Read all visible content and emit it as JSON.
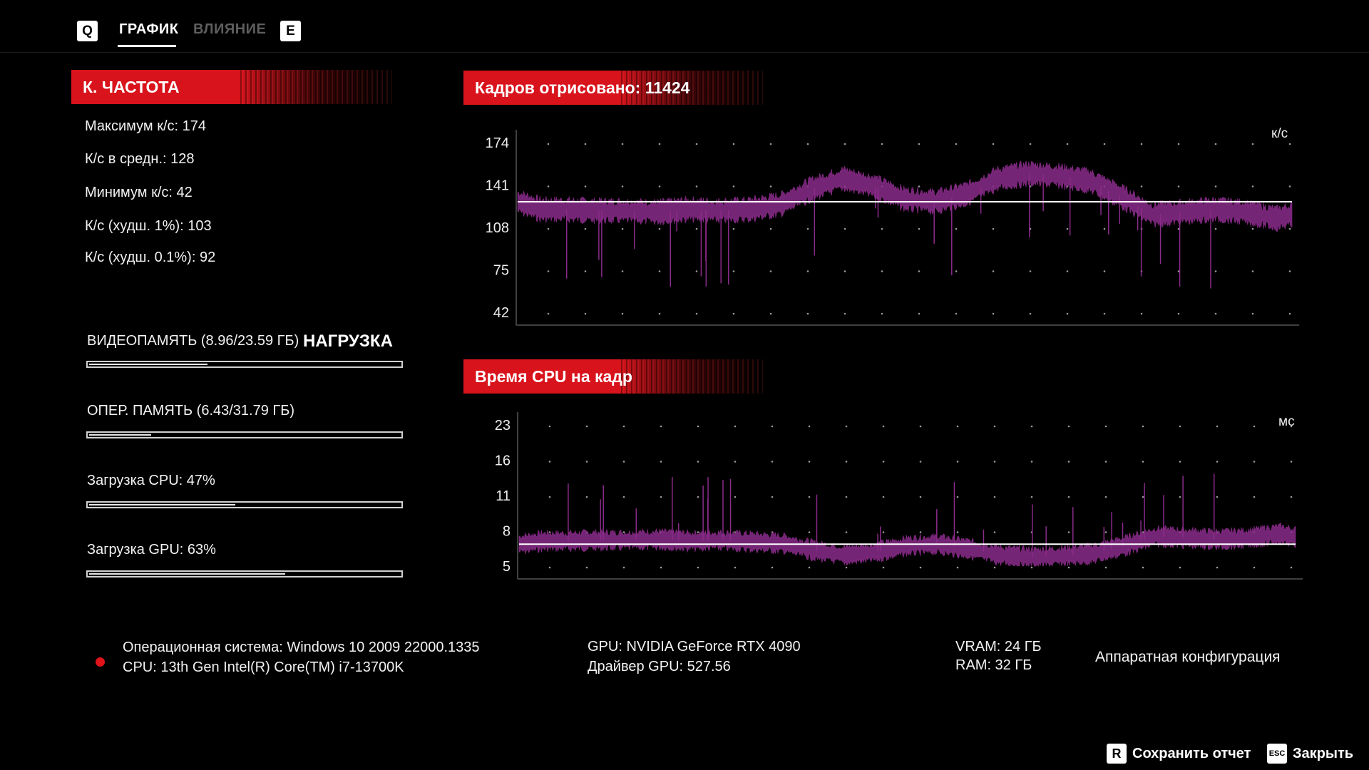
{
  "tabs": {
    "prev_key": "Q",
    "next_key": "E",
    "items": [
      {
        "label": "ГРАФИК",
        "active": true
      },
      {
        "label": "ВЛИЯНИЕ",
        "active": false
      }
    ]
  },
  "fps_panel": {
    "title": "К. ЧАСТОТА",
    "stats": [
      "Максимум к/с: 174",
      "К/с в средн.: 128",
      "Минимум к/с: 42",
      "К/с (худш. 1%): 103",
      "К/с (худш. 0.1%): 92"
    ]
  },
  "load": {
    "title": "НАГРУЗКА",
    "items": [
      {
        "label": "ВИДЕОПАМЯТЬ (8.96/23.59 ГБ)",
        "fraction": 0.38
      },
      {
        "label": "ОПЕР. ПАМЯТЬ (6.43/31.79 ГБ)",
        "fraction": 0.2
      },
      {
        "label": "Загрузка CPU: 47%",
        "fraction": 0.47
      },
      {
        "label": "Загрузка GPU: 63%",
        "fraction": 0.63
      }
    ]
  },
  "frames_panel": {
    "title": "Кадров отрисовано: 11424",
    "unit": "к/с"
  },
  "cpu_panel": {
    "title": "Время CPU на кадр",
    "unit": "мс"
  },
  "chart_data": [
    {
      "type": "line",
      "title": "Кадров отрисовано: 11424",
      "ylabel": "к/с",
      "y_ticks": [
        "174",
        "141",
        "108",
        "75",
        "42"
      ],
      "ylim": [
        42,
        174
      ],
      "x": [
        0,
        0.03,
        0.06,
        0.1,
        0.14,
        0.18,
        0.22,
        0.26,
        0.3,
        0.34,
        0.38,
        0.42,
        0.46,
        0.5,
        0.54,
        0.58,
        0.62,
        0.66,
        0.7,
        0.74,
        0.78,
        0.82,
        0.86,
        0.9,
        0.94,
        0.98,
        1
      ],
      "series": [
        {
          "values": [
            128,
            122,
            122,
            121,
            121,
            120,
            122,
            121,
            122,
            126,
            138,
            146,
            140,
            130,
            128,
            134,
            146,
            150,
            148,
            144,
            132,
            118,
            120,
            122,
            120,
            115,
            118
          ]
        }
      ],
      "reference_line": 128,
      "grid": "dots",
      "color": "#8a2b8a"
    },
    {
      "type": "line",
      "title": "Время CPU на кадр",
      "ylabel": "мс",
      "y_ticks": [
        "23",
        "16",
        "11",
        "8",
        "5"
      ],
      "ylim": [
        5,
        23
      ],
      "x": [
        0,
        0.03,
        0.06,
        0.1,
        0.14,
        0.18,
        0.22,
        0.26,
        0.3,
        0.34,
        0.38,
        0.42,
        0.46,
        0.5,
        0.54,
        0.58,
        0.62,
        0.66,
        0.7,
        0.74,
        0.78,
        0.82,
        0.86,
        0.9,
        0.94,
        0.98,
        1
      ],
      "series": [
        {
          "values": [
            7.8,
            8.2,
            8.2,
            8.3,
            8.3,
            8.4,
            8.2,
            8.3,
            8.1,
            7.9,
            7.0,
            6.4,
            6.8,
            7.6,
            7.8,
            7.2,
            6.4,
            6.1,
            6.3,
            6.6,
            7.6,
            8.8,
            8.6,
            8.4,
            8.6,
            9.1,
            8.7
          ]
        }
      ],
      "reference_line": 7.8,
      "grid": "dots",
      "color": "#8a2b8a"
    }
  ],
  "system": {
    "os": "Операционная система: Windows 10 2009 22000.1335",
    "cpu": "CPU: 13th Gen Intel(R) Core(TM) i7-13700K",
    "gpu": "GPU: NVIDIA GeForce RTX 4090",
    "driver": "Драйвер GPU: 527.56",
    "vram": "VRAM: 24 ГБ",
    "ram": "RAM: 32 ГБ",
    "hardware_config": "Аппаратная конфигурация"
  },
  "actions": {
    "save": {
      "key": "R",
      "label": "Сохранить отчет"
    },
    "close": {
      "key": "ESC",
      "label": "Закрыть"
    }
  }
}
